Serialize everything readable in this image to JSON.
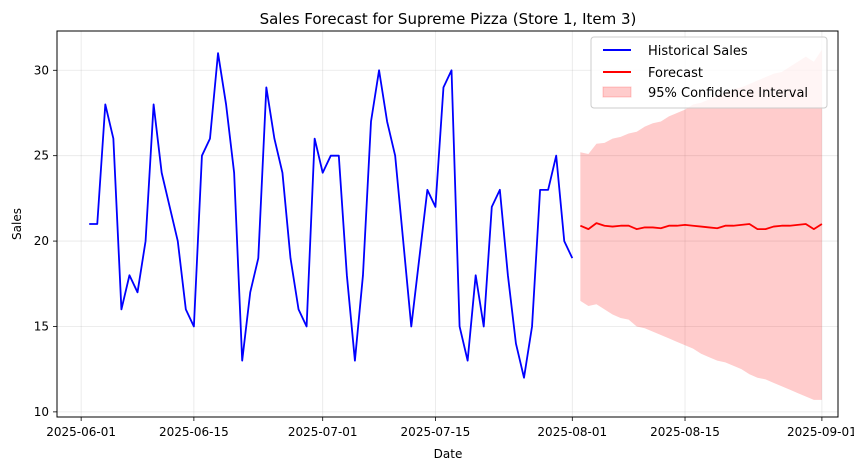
{
  "chart_data": {
    "type": "line",
    "title": "Sales Forecast for Supreme Pizza (Store 1, Item 3)",
    "xlabel": "Date",
    "ylabel": "Sales",
    "xlim": [
      "2025-05-29",
      "2025-09-03"
    ],
    "ylim": [
      9.7,
      32.3
    ],
    "x_ticks": [
      {
        "date": "2025-06-01",
        "label": "2025-06-01"
      },
      {
        "date": "2025-06-15",
        "label": "2025-06-15"
      },
      {
        "date": "2025-07-01",
        "label": "2025-07-01"
      },
      {
        "date": "2025-07-15",
        "label": "2025-07-15"
      },
      {
        "date": "2025-08-01",
        "label": "2025-08-01"
      },
      {
        "date": "2025-08-15",
        "label": "2025-08-15"
      },
      {
        "date": "2025-09-01",
        "label": "2025-09-01"
      }
    ],
    "y_ticks": [
      10,
      15,
      20,
      25,
      30
    ],
    "grid": true,
    "legend_position": "top-right",
    "series": [
      {
        "name": "Historical Sales",
        "color": "#0000ff",
        "start_date": "2025-06-02",
        "values": [
          21,
          21,
          28,
          26,
          16,
          18,
          17,
          20,
          28,
          24,
          22,
          20,
          16,
          15,
          25,
          26,
          31,
          28,
          24,
          13,
          17,
          19,
          29,
          26,
          24,
          19,
          16,
          15,
          26,
          24,
          25,
          25,
          18,
          13,
          18,
          27,
          30,
          27,
          25,
          20,
          15,
          19,
          23,
          22,
          29,
          30,
          15,
          13,
          18,
          15,
          22,
          23,
          18,
          14,
          12,
          15,
          23,
          23,
          25,
          20,
          19
        ]
      },
      {
        "name": "Forecast",
        "color": "#ff0000",
        "start_date": "2025-08-02",
        "values": [
          20.9,
          20.7,
          21.05,
          20.9,
          20.85,
          20.9,
          20.9,
          20.7,
          20.8,
          20.8,
          20.75,
          20.9,
          20.9,
          20.95,
          20.9,
          20.85,
          20.8,
          20.75,
          20.9,
          20.9,
          20.95,
          21.0,
          20.7,
          20.7,
          20.85,
          20.9,
          20.9,
          20.95,
          21.0,
          20.7,
          21.0
        ]
      }
    ],
    "confidence_interval": {
      "name": "95% Confidence Interval",
      "color": "#ff9999",
      "start_date": "2025-08-02",
      "upper": [
        25.2,
        25.1,
        25.7,
        25.75,
        26.0,
        26.1,
        26.3,
        26.4,
        26.7,
        26.9,
        27.0,
        27.3,
        27.5,
        27.7,
        28.0,
        28.1,
        28.3,
        28.5,
        28.7,
        28.9,
        29.0,
        29.2,
        29.4,
        29.6,
        29.8,
        29.9,
        30.2,
        30.5,
        30.8,
        30.5,
        31.2
      ],
      "lower": [
        16.5,
        16.2,
        16.3,
        16.0,
        15.7,
        15.5,
        15.4,
        15.0,
        14.9,
        14.7,
        14.5,
        14.3,
        14.1,
        13.9,
        13.7,
        13.4,
        13.2,
        13.0,
        12.9,
        12.7,
        12.5,
        12.2,
        12.0,
        11.9,
        11.7,
        11.5,
        11.3,
        11.1,
        10.9,
        10.7,
        10.7
      ]
    }
  }
}
